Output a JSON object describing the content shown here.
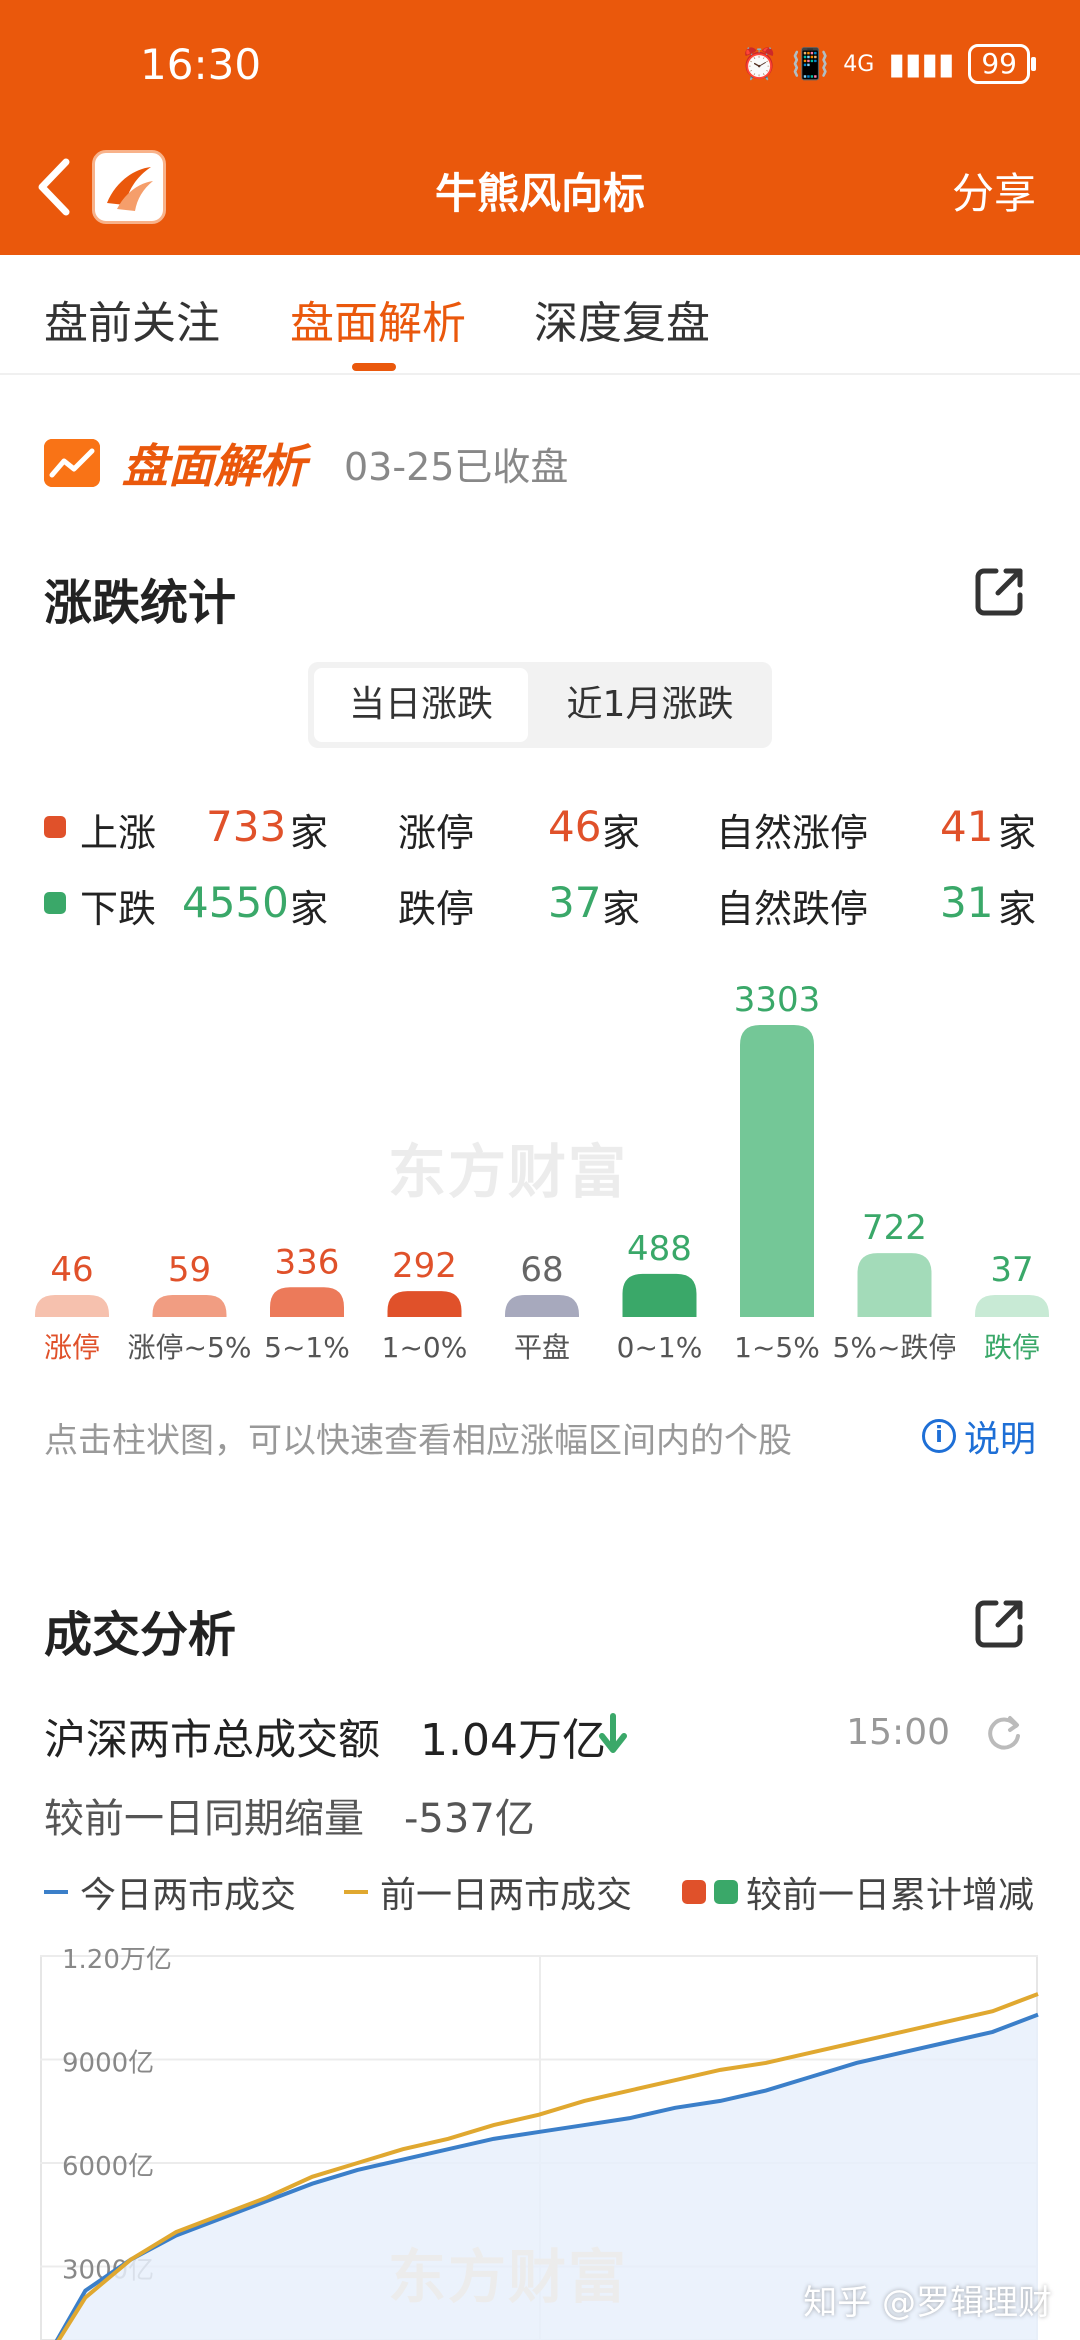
{
  "status_bar": {
    "time": "16:30",
    "network": "4G",
    "battery": "99"
  },
  "nav": {
    "title": "牛熊风向标",
    "share": "分享"
  },
  "tabs": [
    {
      "label": "盘前关注",
      "active": false
    },
    {
      "label": "盘面解析",
      "active": true
    },
    {
      "label": "深度复盘",
      "active": false
    }
  ],
  "brand": {
    "title": "盘面解析",
    "date": "03-25已收盘"
  },
  "rise_fall": {
    "title": "涨跌统计",
    "toggle": [
      "当日涨跌",
      "近1月涨跌"
    ],
    "rows": [
      {
        "label": "上涨",
        "count": "733",
        "unit": "家",
        "limit_label": "涨停",
        "limit_count": "46",
        "natural_label": "自然涨停",
        "natural_count": "41"
      },
      {
        "label": "下跌",
        "count": "4550",
        "unit": "家",
        "limit_label": "跌停",
        "limit_count": "37",
        "natural_label": "自然跌停",
        "natural_count": "31"
      }
    ],
    "watermark": "东方财富",
    "hint": "点击柱状图，可以快速查看相应涨幅区间内的个股",
    "info_link": "说明"
  },
  "chart_data": [
    {
      "type": "bar",
      "categories": [
        "涨停",
        "涨停~5%",
        "5~1%",
        "1~0%",
        "平盘",
        "0~1%",
        "1~5%",
        "5%~跌停",
        "跌停"
      ],
      "values": [
        46,
        59,
        336,
        292,
        68,
        488,
        3303,
        722,
        37
      ],
      "colors": [
        "#f6c1ae",
        "#f19d82",
        "#ec7a5a",
        "#e0512a",
        "#a7a9bd",
        "#3aa869",
        "#74c797",
        "#a3dbb9",
        "#c8ead5"
      ],
      "label_colors": [
        "#e0512a",
        "#e0512a",
        "#e0512a",
        "#e0512a",
        "#666666",
        "#3aa869",
        "#3aa869",
        "#3aa869",
        "#3aa869"
      ]
    },
    {
      "type": "line",
      "title": "成交分析",
      "yticks": [
        "1.20万亿",
        "9000亿",
        "6000亿",
        "3000亿"
      ],
      "ylim": [
        0,
        12000
      ],
      "series": [
        {
          "name": "今日两市成交",
          "color": "#3b7fc9",
          "values": [
            0,
            2300,
            3200,
            3900,
            4400,
            4900,
            5400,
            5800,
            6100,
            6400,
            6700,
            6900,
            7100,
            7300,
            7600,
            7800,
            8100,
            8500,
            8900,
            9200,
            9500,
            9800,
            10300
          ]
        },
        {
          "name": "前一日两市成交",
          "color": "#e0a830",
          "values": [
            0,
            2100,
            3200,
            4000,
            4500,
            5000,
            5600,
            6000,
            6400,
            6700,
            7100,
            7400,
            7800,
            8100,
            8400,
            8700,
            8900,
            9200,
            9500,
            9800,
            10100,
            10400,
            10900
          ]
        }
      ]
    }
  ],
  "turnover": {
    "section_title": "成交分析",
    "label": "沪深两市总成交额",
    "value": "1.04万亿",
    "time": "15:00",
    "shrink_label": "较前一日同期缩量",
    "shrink_value": "-537亿",
    "legend": [
      "今日两市成交",
      "前一日两市成交",
      "较前一日累计增减"
    ],
    "legend_colors": {
      "today": "#3b7fc9",
      "prev": "#e0a830",
      "up": "#e0512a",
      "down": "#3aa869"
    }
  },
  "footer_watermark": "知乎 @罗辑理财",
  "colors": {
    "brand": "#ea580c",
    "up": "#e0512a",
    "down": "#3aa869",
    "link": "#1e6fd6"
  }
}
